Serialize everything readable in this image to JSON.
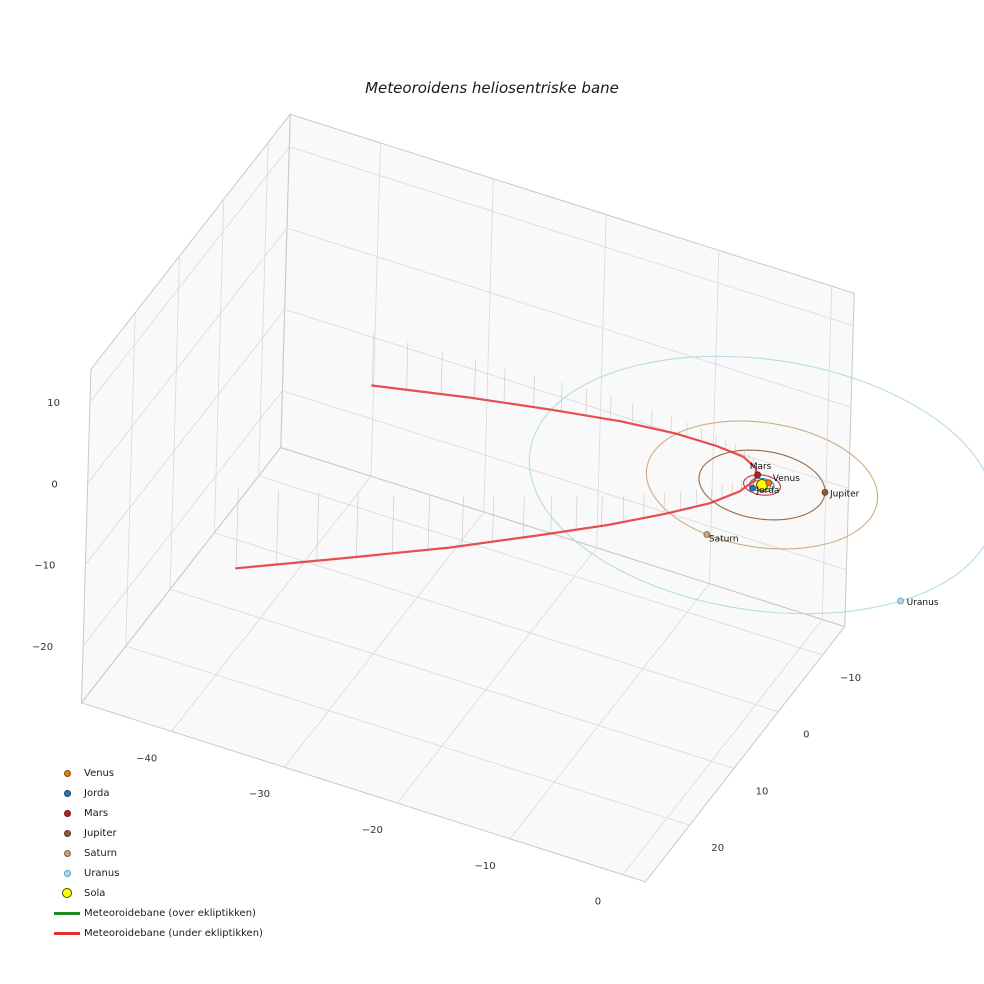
{
  "chart_data": {
    "type": "scatter",
    "projection": "3d",
    "title": "Meteoroidens heliosentriske bane",
    "grid": true,
    "legend_position": "lower-left",
    "units": "AU",
    "axes": {
      "x": {
        "range": [
          -48,
          2
        ],
        "ticks": [
          -40,
          -30,
          -20,
          -10,
          0
        ]
      },
      "y": {
        "range": [
          -15,
          30
        ],
        "ticks": [
          -10,
          0,
          10,
          20
        ]
      },
      "z": {
        "range": [
          -27,
          14
        ],
        "ticks": [
          -20,
          -10,
          0,
          10
        ]
      }
    },
    "sun": {
      "name": "Sola",
      "color": "#ffff00",
      "edge_color": "#4d4d00",
      "position": [
        0,
        0,
        0
      ]
    },
    "planets": [
      {
        "name": "Venus",
        "color": "#e07b1a",
        "edge_color": "#8a4d10",
        "orbit_radius_au": 0.72,
        "position_deg": -60
      },
      {
        "name": "Jorda",
        "color": "#1f77b4",
        "edge_color": "#11466e",
        "orbit_radius_au": 1.0,
        "position_deg": 120
      },
      {
        "name": "Mars",
        "color": "#b22222",
        "edge_color": "#6e1414",
        "orbit_radius_au": 1.52,
        "position_deg": 235
      },
      {
        "name": "Jupiter",
        "color": "#8f5b33",
        "edge_color": "#5c3a1f",
        "orbit_radius_au": 5.2,
        "position_deg": -20
      },
      {
        "name": "Saturn",
        "color": "#c8a478",
        "edge_color": "#7a6248",
        "orbit_radius_au": 9.54,
        "position_deg": 97
      },
      {
        "name": "Uranus",
        "color": "#add8e6",
        "edge_color": "#5b9bbf",
        "orbit_radius_au": 19.2,
        "position_deg": 32
      }
    ],
    "meteoroid": {
      "legend_over": "Meteoroidebane (over ekliptikken)",
      "legend_under": "Meteoroidebane (under ekliptikken)",
      "color_over": "#1e8c1e",
      "color_under": "#e53030",
      "points_over": [],
      "points_under": [
        [
          -36.0,
          -4.0,
          -6.4
        ],
        [
          -27.8,
          -4.9,
          -4.9
        ],
        [
          -20.7,
          -5.5,
          -3.7
        ],
        [
          -14.7,
          -5.8,
          -2.7
        ],
        [
          -9.8,
          -5.6,
          -1.9
        ],
        [
          -6.0,
          -5.1,
          -1.4
        ],
        [
          -3.3,
          -4.3,
          -1.0
        ],
        [
          -1.7,
          -3.1,
          -0.9
        ],
        [
          -1.2,
          -1.5,
          -1.0
        ],
        [
          -1.8,
          0.4,
          -1.3
        ],
        [
          -3.5,
          2.7,
          -1.9
        ],
        [
          -6.4,
          5.4,
          -2.6
        ],
        [
          -10.3,
          8.4,
          -3.6
        ],
        [
          -15.3,
          11.7,
          -4.8
        ],
        [
          -21.4,
          15.5,
          -6.3
        ],
        [
          -28.7,
          19.6,
          -7.9
        ],
        [
          -37.0,
          24.0,
          -9.8
        ]
      ]
    }
  }
}
